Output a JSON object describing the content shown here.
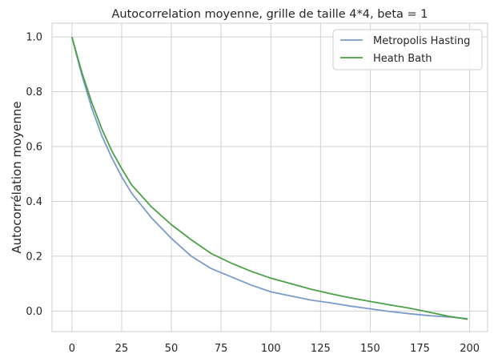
{
  "chart_data": {
    "type": "line",
    "title": "Autocorrelation moyenne, grille de taille 4*4, beta = 1",
    "xlabel": "",
    "ylabel": "Autocorrélation moyenne",
    "xlim": [
      -10,
      209
    ],
    "ylim": [
      -0.075,
      1.05
    ],
    "xticks": [
      0,
      25,
      50,
      75,
      100,
      125,
      150,
      175,
      200
    ],
    "xtick_labels": [
      "0",
      "25",
      "50",
      "75",
      "100",
      "125",
      "150",
      "175",
      "200"
    ],
    "yticks": [
      0.0,
      0.2,
      0.4,
      0.6,
      0.8,
      1.0
    ],
    "ytick_labels": [
      "0.0",
      "0.2",
      "0.4",
      "0.6",
      "0.8",
      "1.0"
    ],
    "grid": true,
    "legend_position": "top-right",
    "series": [
      {
        "name": "Metropolis Hasting",
        "color": "#7a9bc9",
        "x": [
          0,
          5,
          10,
          15,
          20,
          25,
          30,
          40,
          50,
          60,
          70,
          80,
          90,
          100,
          110,
          120,
          130,
          140,
          150,
          160,
          170,
          180,
          190,
          199
        ],
        "y": [
          1.0,
          0.86,
          0.74,
          0.64,
          0.56,
          0.49,
          0.43,
          0.34,
          0.265,
          0.2,
          0.155,
          0.125,
          0.095,
          0.07,
          0.055,
          0.04,
          0.03,
          0.018,
          0.008,
          -0.002,
          -0.01,
          -0.017,
          -0.022,
          -0.028
        ]
      },
      {
        "name": "Heath Bath",
        "color": "#4aa146",
        "x": [
          0,
          5,
          10,
          15,
          20,
          25,
          30,
          40,
          50,
          60,
          70,
          80,
          90,
          100,
          110,
          120,
          130,
          140,
          150,
          160,
          170,
          180,
          190,
          199
        ],
        "y": [
          1.0,
          0.87,
          0.76,
          0.665,
          0.585,
          0.52,
          0.46,
          0.38,
          0.315,
          0.26,
          0.21,
          0.175,
          0.145,
          0.12,
          0.1,
          0.08,
          0.063,
          0.048,
          0.035,
          0.022,
          0.01,
          -0.005,
          -0.02,
          -0.03
        ]
      }
    ]
  }
}
